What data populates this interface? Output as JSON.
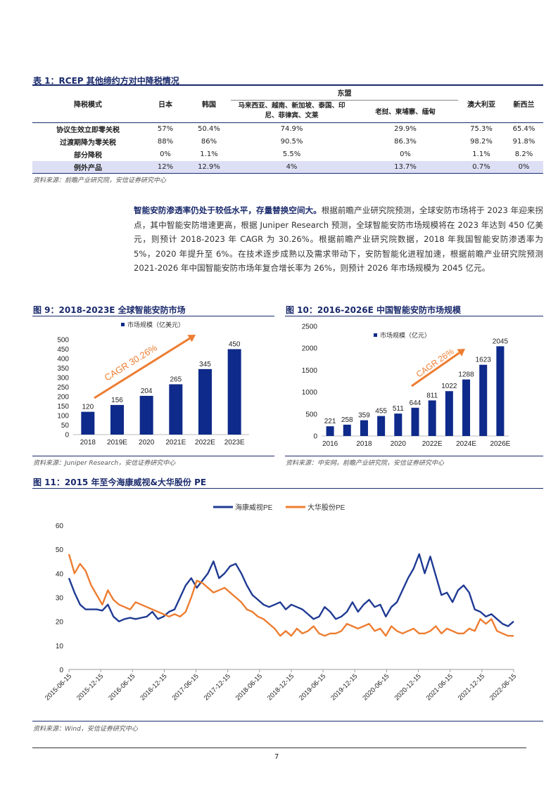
{
  "table1": {
    "title": "表 1：RCEP 其他缔约方对中降税情况",
    "header_group": "东盟",
    "headers": [
      "降税模式",
      "日本",
      "韩国",
      "马来西亚、越南、新加坡、泰国、印尼、菲律宾、文莱",
      "老挝、柬埔寨、缅甸",
      "澳大利亚",
      "新西兰"
    ],
    "rows": [
      [
        "协议生效立即零关税",
        "57%",
        "50.4%",
        "74.9%",
        "29.9%",
        "75.3%",
        "65.4%"
      ],
      [
        "过渡期降为零关税",
        "88%",
        "86%",
        "90.5%",
        "86.3%",
        "98.2%",
        "91.8%"
      ],
      [
        "部分降税",
        "0%",
        "1.1%",
        "5.5%",
        "0%",
        "1.1%",
        "8.2%"
      ],
      [
        "例外产品",
        "12%",
        "12.9%",
        "4%",
        "13.7%",
        "0.7%",
        "0%"
      ]
    ],
    "source": "资料来源：前瞻产业研究院，安信证券研究中心"
  },
  "paragraph": {
    "lead": "智能安防渗透率仍处于较低水平，存量替换空间大。",
    "body": "根据前瞻产业研究院预测，全球安防市场将于 2023 年迎来拐点，其中智能安防增速更高，根据 Juniper Research 预测，全球智能安防市场规模将在 2023 年达到 450 亿美元，则预计 2018-2023 年 CAGR 为 30.26%。根据前瞻产业研究院数据，2018 年我国智能安防渗透率为 5%，2020 年提升至 6%。在技术逐步成熟以及需求带动下，安防智能化进程加速，根据前瞻产业研究院预测 2021-2026 年中国智能安防市场年复合增长率为 26%，则预计 2026 年市场规模为 2045 亿元。"
  },
  "fig9": {
    "title": "图 9：2018-2023E 全球智能安防市场",
    "source": "资料来源：Juniper Research，安信证券研究中心",
    "annotation": "CAGR 30.26%"
  },
  "fig10": {
    "title": "图 10：2016-2026E 中国智能安防市场规模",
    "source": "资料来源：中安网，前瞻产业研究院，安信证券研究中心",
    "annotation": "CAGR 26%"
  },
  "fig11": {
    "title": "图 11：2015 年至今海康威视&大华股份 PE",
    "source": "资料来源：Wind，安信证券研究中心"
  },
  "page_number": "7",
  "colors": {
    "bar": "#0e2a8a",
    "hik": "#1f3a93",
    "dahua": "#ed7d31",
    "arrow": "#ed7d31",
    "band": "#dde0f5"
  },
  "chart_data": [
    {
      "type": "bar",
      "categories": [
        "2018",
        "2019E",
        "2020",
        "2021E",
        "2022E",
        "2023E"
      ],
      "series": [
        {
          "name": "市场规模（亿美元）",
          "values": [
            120,
            156,
            204,
            265,
            345,
            450
          ]
        }
      ],
      "yticks": [
        "0",
        "50",
        "100",
        "150",
        "200",
        "250",
        "300",
        "350",
        "400",
        "450",
        "500"
      ],
      "ylim": [
        0,
        500
      ]
    },
    {
      "type": "bar",
      "categories": [
        "2016",
        "2017",
        "2018",
        "2019",
        "2020",
        "2021",
        "2022E",
        "2023E",
        "2024E",
        "2025E",
        "2026E"
      ],
      "xtick_labels": [
        "2016",
        "",
        "2018",
        "",
        "2020",
        "",
        "2022E",
        "",
        "2024E",
        "",
        "2026E"
      ],
      "series": [
        {
          "name": "市场规模（亿元）",
          "values": [
            221,
            258,
            359,
            455,
            511,
            644,
            811,
            1022,
            1288,
            1623,
            2045
          ]
        }
      ],
      "yticks": [
        "0",
        "500",
        "1000",
        "1500",
        "2000",
        "2500"
      ],
      "ylim": [
        0,
        2500
      ]
    },
    {
      "type": "line",
      "x_range": [
        "2015-06-15",
        "2022-06-15"
      ],
      "xticks": [
        "2015-06-15",
        "2015-12-15",
        "2016-06-15",
        "2016-12-15",
        "2017-06-15",
        "2017-12-15",
        "2018-06-15",
        "2018-12-15",
        "2019-06-15",
        "2019-12-15",
        "2020-06-15",
        "2020-12-15",
        "2021-06-15",
        "2021-12-15",
        "2022-06-15"
      ],
      "yticks": [
        "0",
        "10",
        "20",
        "30",
        "40",
        "50",
        "60"
      ],
      "ylim": [
        0,
        60
      ],
      "legend_position": "top-center",
      "series": [
        {
          "name": "海康威视PE",
          "values": [
            38,
            32,
            27,
            25,
            25,
            25,
            24.5,
            27,
            22,
            20,
            21,
            21.5,
            21,
            21.5,
            22,
            24,
            21,
            22,
            24,
            25,
            30,
            35,
            38,
            34,
            37,
            40,
            45,
            38,
            40,
            43,
            44,
            40,
            35,
            31,
            29,
            27,
            26,
            27,
            28,
            25,
            27,
            26,
            25,
            23,
            21,
            22,
            26,
            24,
            21,
            22,
            24,
            28,
            24,
            27,
            29,
            26,
            27,
            22,
            26,
            28,
            33,
            38,
            42,
            48,
            40,
            47,
            39,
            31,
            32,
            28,
            33,
            35,
            32,
            25,
            24,
            22,
            23,
            21,
            19,
            18,
            20
          ]
        },
        {
          "name": "大华股份PE",
          "values": [
            48,
            40,
            44,
            41,
            35,
            31,
            27,
            33,
            29,
            27,
            26,
            25,
            28,
            27,
            26,
            25,
            24,
            23,
            22,
            23,
            22,
            24,
            30,
            37,
            36,
            34,
            32,
            33,
            34,
            32,
            30,
            28,
            25,
            24,
            22,
            21,
            19,
            17,
            14,
            16,
            14,
            17,
            15,
            16,
            18,
            15,
            14,
            15,
            15,
            16,
            19,
            18,
            17,
            18,
            19,
            16,
            17,
            14,
            18,
            16,
            15,
            16,
            17,
            15,
            15,
            16,
            18,
            15,
            17,
            16,
            15,
            15,
            17,
            16,
            21,
            19,
            21,
            16,
            15,
            14,
            14
          ]
        }
      ]
    }
  ]
}
